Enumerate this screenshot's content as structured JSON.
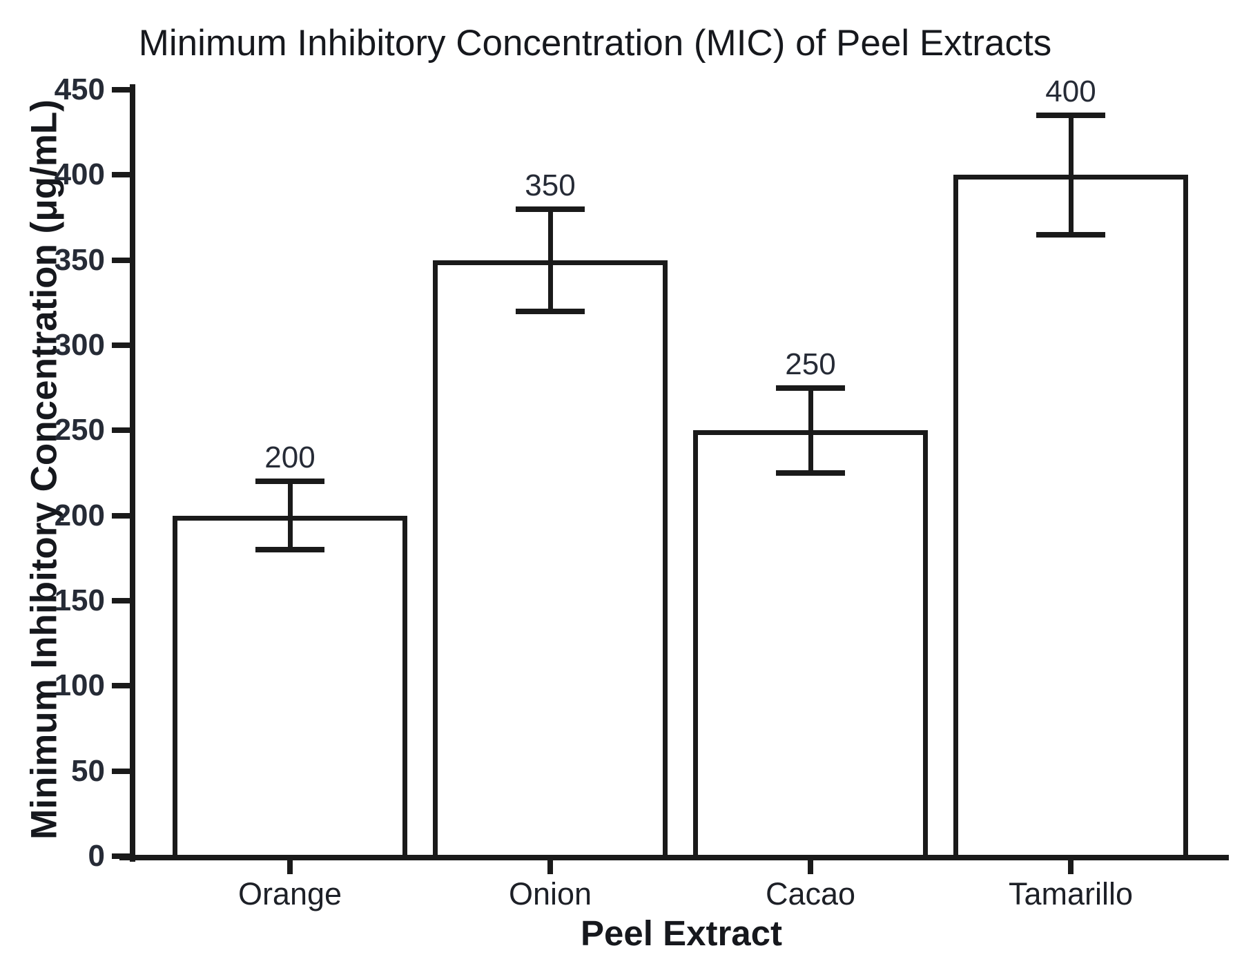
{
  "chart_data": {
    "type": "bar",
    "title": "Minimum Inhibitory Concentration (MIC) of Peel Extracts",
    "xlabel": "Peel Extract",
    "ylabel": "Minimum Inhibitory Concentration (μg/mL)",
    "categories": [
      "Orange",
      "Onion",
      "Cacao",
      "Tamarillo"
    ],
    "values": [
      200,
      350,
      250,
      400
    ],
    "error_bars": [
      20,
      30,
      25,
      35
    ],
    "bar_value_labels": [
      "200",
      "350",
      "250",
      "400"
    ],
    "yticks": [
      0,
      50,
      100,
      150,
      200,
      250,
      300,
      350,
      400,
      450
    ],
    "ylim": [
      0,
      450
    ],
    "grid": false,
    "legend": false,
    "bar_fill": "#ffffff",
    "bar_stroke": "#1a1a1a",
    "error_color": "#1a1a1a",
    "text_color": "#262b36",
    "background": "#ffffff"
  }
}
